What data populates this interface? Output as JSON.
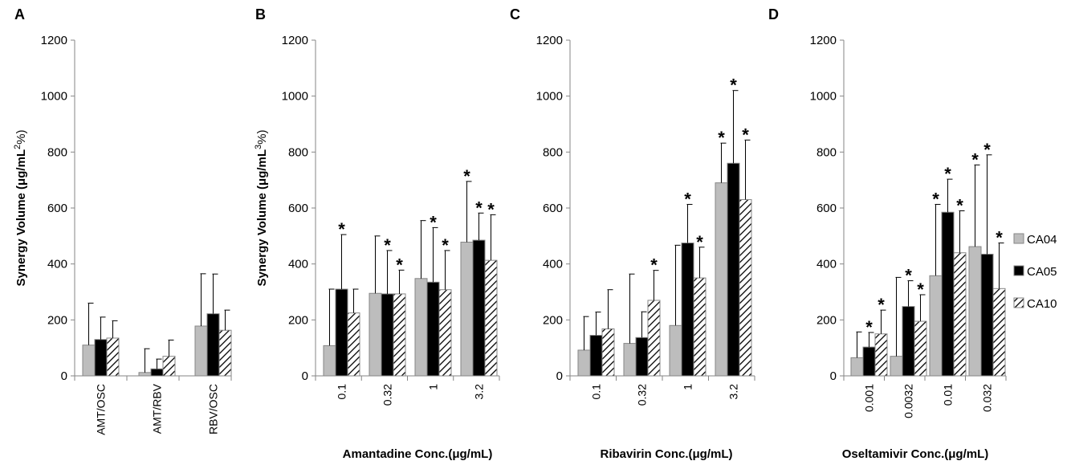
{
  "colors": {
    "CA04": "#bdbdbd",
    "CA05": "#000000",
    "CA10": "#ffffff",
    "axis": "#868686",
    "error": "#000000"
  },
  "legend": {
    "placement": "right",
    "entries": [
      "CA04",
      "CA05",
      "CA10"
    ]
  },
  "chart_data": [
    {
      "type": "bar",
      "panel": "A",
      "categories": [
        "AMT/OSC",
        "AMT/RBV",
        "RBV/OSC"
      ],
      "ylabel_prefix": "Synergy Volume (μg/mL",
      "ylabel_sup": "2",
      "ylabel_suffix": "%)",
      "xlabel": "",
      "ylim": [
        0,
        1200
      ],
      "yticks": [
        "0",
        "200",
        "400",
        "600",
        "800",
        "1000",
        "1200"
      ],
      "series": [
        {
          "name": "CA04",
          "values": [
            110,
            12,
            178
          ],
          "errors": [
            150,
            85,
            187
          ]
        },
        {
          "name": "CA05",
          "values": [
            130,
            25,
            222
          ],
          "errors": [
            80,
            35,
            142
          ]
        },
        {
          "name": "CA10",
          "values": [
            135,
            70,
            163
          ],
          "errors": [
            62,
            58,
            72
          ]
        }
      ],
      "stars": [
        [
          false,
          false,
          false
        ],
        [
          false,
          false,
          false
        ],
        [
          false,
          false,
          false
        ]
      ]
    },
    {
      "type": "bar",
      "panel": "B",
      "categories": [
        "0.1",
        "0.32",
        "1",
        "3.2"
      ],
      "ylabel_prefix": "Synergy Volume (μg/mL",
      "ylabel_sup": "3",
      "ylabel_suffix": "%)",
      "xlabel": "Amantadine Conc.(μg/mL)",
      "ylim": [
        0,
        1200
      ],
      "yticks": [
        "0",
        "200",
        "400",
        "600",
        "800",
        "1000",
        "1200"
      ],
      "series": [
        {
          "name": "CA04",
          "values": [
            108,
            295,
            348,
            478
          ],
          "errors": [
            202,
            205,
            207,
            217
          ]
        },
        {
          "name": "CA05",
          "values": [
            310,
            293,
            335,
            485
          ],
          "errors": [
            195,
            155,
            195,
            97
          ]
        },
        {
          "name": "CA10",
          "values": [
            225,
            293,
            308,
            413
          ],
          "errors": [
            85,
            85,
            140,
            163
          ]
        }
      ],
      "stars": [
        [
          false,
          false,
          false,
          true
        ],
        [
          true,
          true,
          true,
          true
        ],
        [
          false,
          true,
          true,
          true
        ]
      ]
    },
    {
      "type": "bar",
      "panel": "C",
      "categories": [
        "0.1",
        "0.32",
        "1",
        "3.2"
      ],
      "ylabel_prefix": "",
      "ylabel_sup": "",
      "ylabel_suffix": "",
      "xlabel": "Ribavirin Conc.(μg/mL)",
      "ylim": [
        0,
        1200
      ],
      "yticks": [
        "0",
        "200",
        "400",
        "600",
        "800",
        "1000",
        "1200"
      ],
      "series": [
        {
          "name": "CA04",
          "values": [
            92,
            116,
            180,
            690
          ],
          "errors": [
            120,
            248,
            287,
            142
          ]
        },
        {
          "name": "CA05",
          "values": [
            145,
            137,
            475,
            760
          ],
          "errors": [
            83,
            92,
            138,
            260
          ]
        },
        {
          "name": "CA10",
          "values": [
            168,
            270,
            350,
            630
          ],
          "errors": [
            140,
            107,
            110,
            213
          ]
        }
      ],
      "stars": [
        [
          false,
          false,
          false,
          true
        ],
        [
          false,
          false,
          true,
          true
        ],
        [
          false,
          true,
          true,
          true
        ]
      ]
    },
    {
      "type": "bar",
      "panel": "D",
      "categories": [
        "0.001",
        "0.0032",
        "0.01",
        "0.032"
      ],
      "ylabel_prefix": "",
      "ylabel_sup": "",
      "ylabel_suffix": "",
      "xlabel": "Oseltamivir Conc.(μg/mL)",
      "ylim": [
        0,
        1200
      ],
      "yticks": [
        "0",
        "200",
        "400",
        "600",
        "800",
        "1000",
        "1200"
      ],
      "series": [
        {
          "name": "CA04",
          "values": [
            65,
            70,
            358,
            462
          ],
          "errors": [
            92,
            282,
            255,
            292
          ]
        },
        {
          "name": "CA05",
          "values": [
            103,
            248,
            585,
            435
          ],
          "errors": [
            52,
            92,
            118,
            355
          ]
        },
        {
          "name": "CA10",
          "values": [
            150,
            195,
            440,
            312
          ],
          "errors": [
            85,
            95,
            150,
            163
          ]
        }
      ],
      "stars": [
        [
          false,
          false,
          true,
          true
        ],
        [
          true,
          true,
          true,
          true
        ],
        [
          true,
          true,
          true,
          true
        ]
      ]
    }
  ]
}
